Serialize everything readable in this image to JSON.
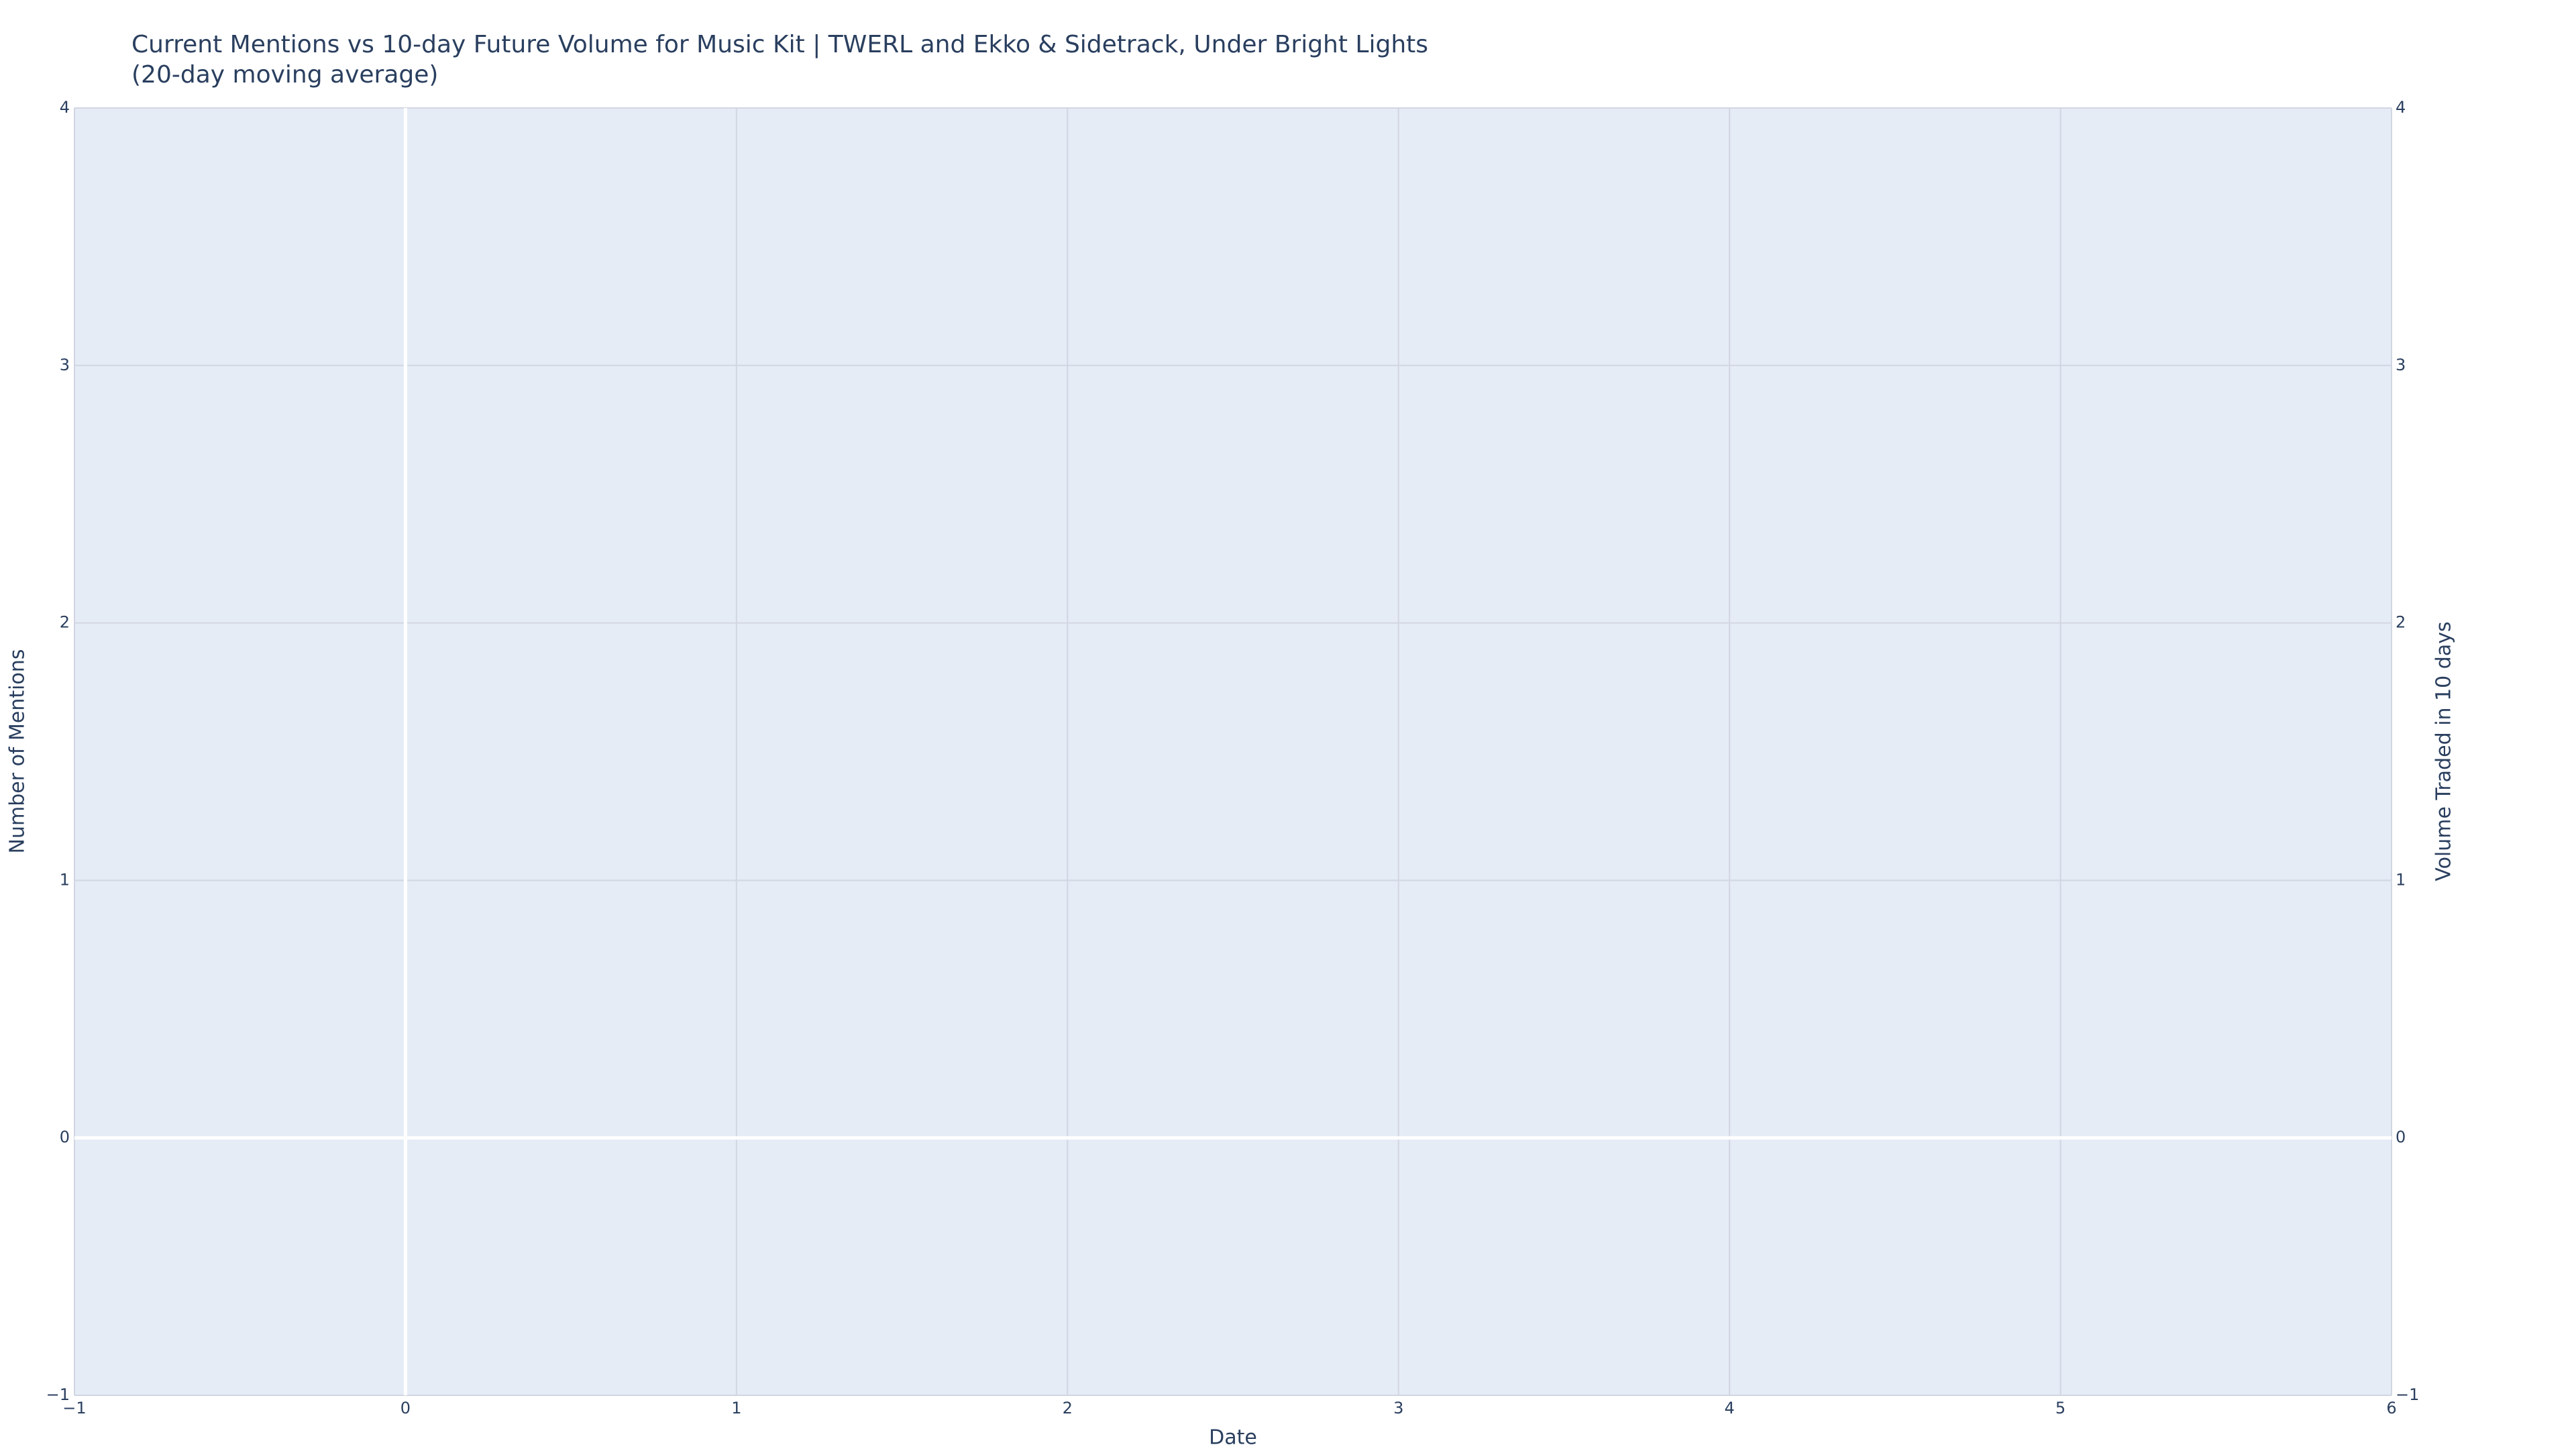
{
  "chart_data": {
    "type": "line",
    "title": "Current Mentions vs 10-day Future Volume for Music Kit | TWERL and Ekko & Sidetrack, Under Bright Lights",
    "subtitle": "(20-day moving average)",
    "x_label": "Date",
    "y_label": "Number of Mentions",
    "y2_label": "Volume Traded in 10 days",
    "series": [],
    "xlim": [
      -1,
      6
    ],
    "xticks": [
      {
        "value": -1,
        "label": "−1"
      },
      0,
      1,
      2,
      3,
      4,
      5,
      6
    ],
    "ylim": [
      -1,
      4
    ],
    "yticks": [
      {
        "value": -1,
        "label": "−1"
      },
      0,
      1,
      2,
      3,
      4
    ],
    "y2lim": [
      -1,
      4
    ],
    "y2ticks": [
      {
        "value": -1,
        "label": "−1"
      },
      0,
      1,
      2,
      3,
      4
    ],
    "grid": true,
    "zeroline": true
  }
}
